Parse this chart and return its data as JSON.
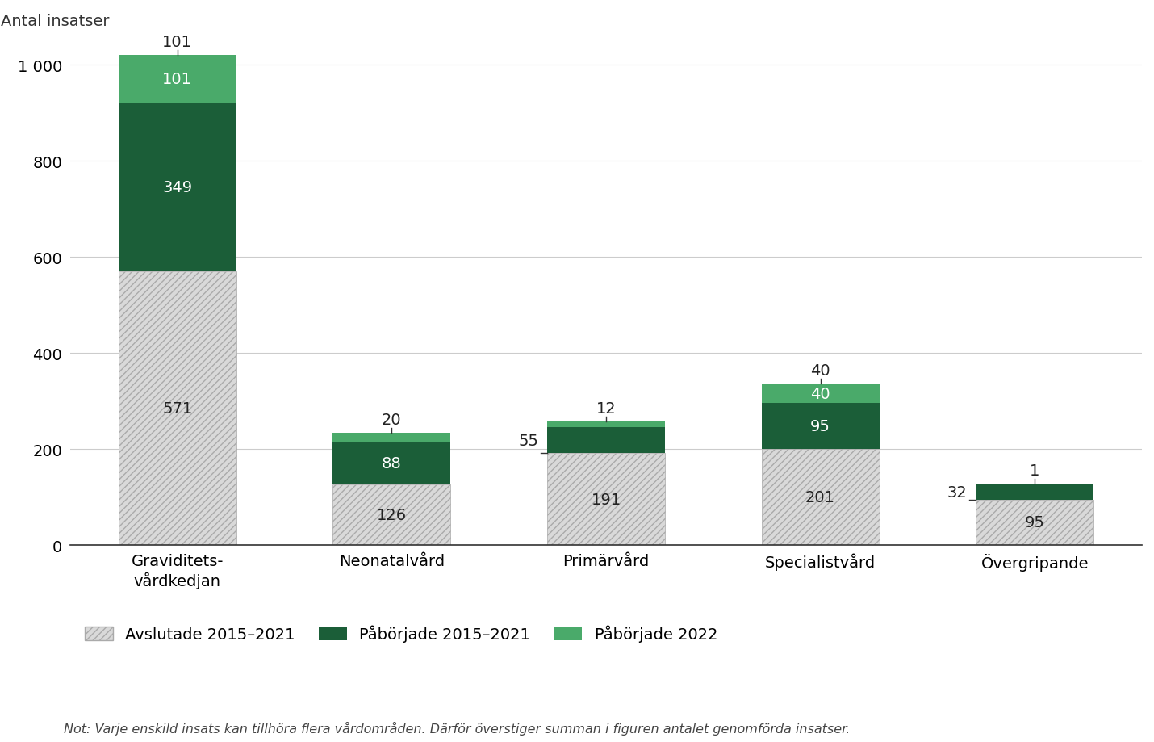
{
  "categories": [
    "Graviditets-\nvårdkedjan",
    "Neonatalvård",
    "Primärvård",
    "Specialistvård",
    "Övergripande"
  ],
  "avslutade": [
    571,
    126,
    191,
    201,
    95
  ],
  "pagick": [
    349,
    88,
    55,
    95,
    32
  ],
  "paborjade_2022": [
    101,
    20,
    12,
    40,
    1
  ],
  "color_avslutade": "#d9d9d9",
  "color_pagick": "#1b5e38",
  "color_paborjade_2022": "#4aaa6a",
  "hatch_avslutade": "////",
  "title_y": "Antal insatser",
  "ylim": [
    0,
    1050
  ],
  "yticks": [
    0,
    200,
    400,
    600,
    800,
    1000
  ],
  "note": "Not: Varje enskild insats kan tillhöra flera vårdområden. Därför överstiger summan i figuren antalet genomförda insatser.",
  "legend_labels": [
    "Avslutade 2015–2021",
    "Påbörjade 2015–2021",
    "Påbörjade 2022"
  ],
  "background_color": "#ffffff",
  "bar_width": 0.55,
  "pagick_label_outside": [
    false,
    false,
    true,
    false,
    true
  ],
  "pagick_label_outside_side": [
    "",
    "",
    "left",
    "",
    "left"
  ]
}
